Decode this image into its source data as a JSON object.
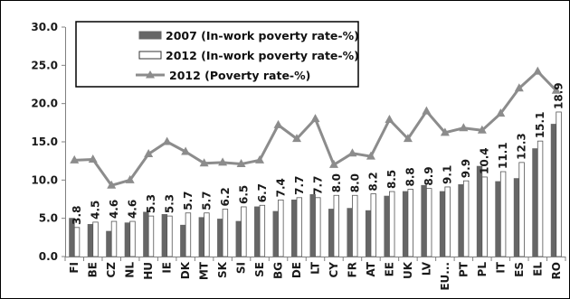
{
  "chart_data": {
    "type": "bar",
    "categories": [
      "FI",
      "BE",
      "CZ",
      "NL",
      "HU",
      "IE",
      "DK",
      "MT",
      "SK",
      "SI",
      "SE",
      "BG",
      "DE",
      "LT",
      "CY",
      "FR",
      "AT",
      "EE",
      "UK",
      "LV",
      "EU...",
      "PT",
      "PL",
      "IT",
      "ES",
      "EL",
      "RO"
    ],
    "series": [
      {
        "name": "2007 (In-work poverty rate-%)",
        "kind": "bar",
        "color": "#666666",
        "values": [
          5.0,
          4.2,
          3.3,
          4.4,
          5.8,
          5.5,
          4.1,
          5.1,
          4.9,
          4.6,
          6.5,
          5.9,
          7.4,
          8.1,
          6.2,
          6.3,
          6.0,
          7.9,
          8.5,
          9.3,
          8.5,
          9.4,
          11.8,
          9.8,
          10.2,
          14.1,
          17.3
        ],
        "data_labels": []
      },
      {
        "name": "2012 (In-work poverty rate-%)",
        "kind": "bar",
        "color": "#ffffff",
        "values": [
          3.8,
          4.5,
          4.6,
          4.6,
          5.3,
          5.3,
          5.7,
          5.7,
          6.2,
          6.5,
          6.7,
          7.4,
          7.7,
          7.7,
          8.0,
          8.0,
          8.2,
          8.5,
          8.8,
          8.9,
          9.1,
          9.9,
          10.4,
          11.1,
          12.3,
          15.1,
          18.9
        ],
        "data_labels": [
          "3.8",
          "4.5",
          "4.6",
          "4.6",
          "5.3",
          "5.3",
          "5.7",
          "5.7",
          "6.2",
          "6.5",
          "6.7",
          "7.4",
          "7.7",
          "7.7",
          "8.0",
          "8.0",
          "8.2",
          "8.5",
          "8.8",
          "8.9",
          "9.1",
          "9.9",
          "10.4",
          "11.1",
          "12.3",
          "15.1",
          "18.9"
        ]
      },
      {
        "name": "2012 (Poverty rate-%)",
        "kind": "line",
        "color": "#8c8c8c",
        "values": [
          12.6,
          12.7,
          9.3,
          10.0,
          13.4,
          15.0,
          13.7,
          12.2,
          12.3,
          12.1,
          12.6,
          17.2,
          15.4,
          18.0,
          12.0,
          13.5,
          13.1,
          17.9,
          15.4,
          19.0,
          16.2,
          16.8,
          16.5,
          18.7,
          22.0,
          24.2,
          21.7
        ],
        "data_labels": []
      }
    ],
    "title": "",
    "xlabel": "",
    "ylabel": "",
    "ylim": [
      0,
      30
    ],
    "yticks": [
      "0.0",
      "5.0",
      "10.0",
      "15.0",
      "20.0",
      "25.0",
      "30.0"
    ],
    "grid": false,
    "legend_position": "top-left"
  }
}
